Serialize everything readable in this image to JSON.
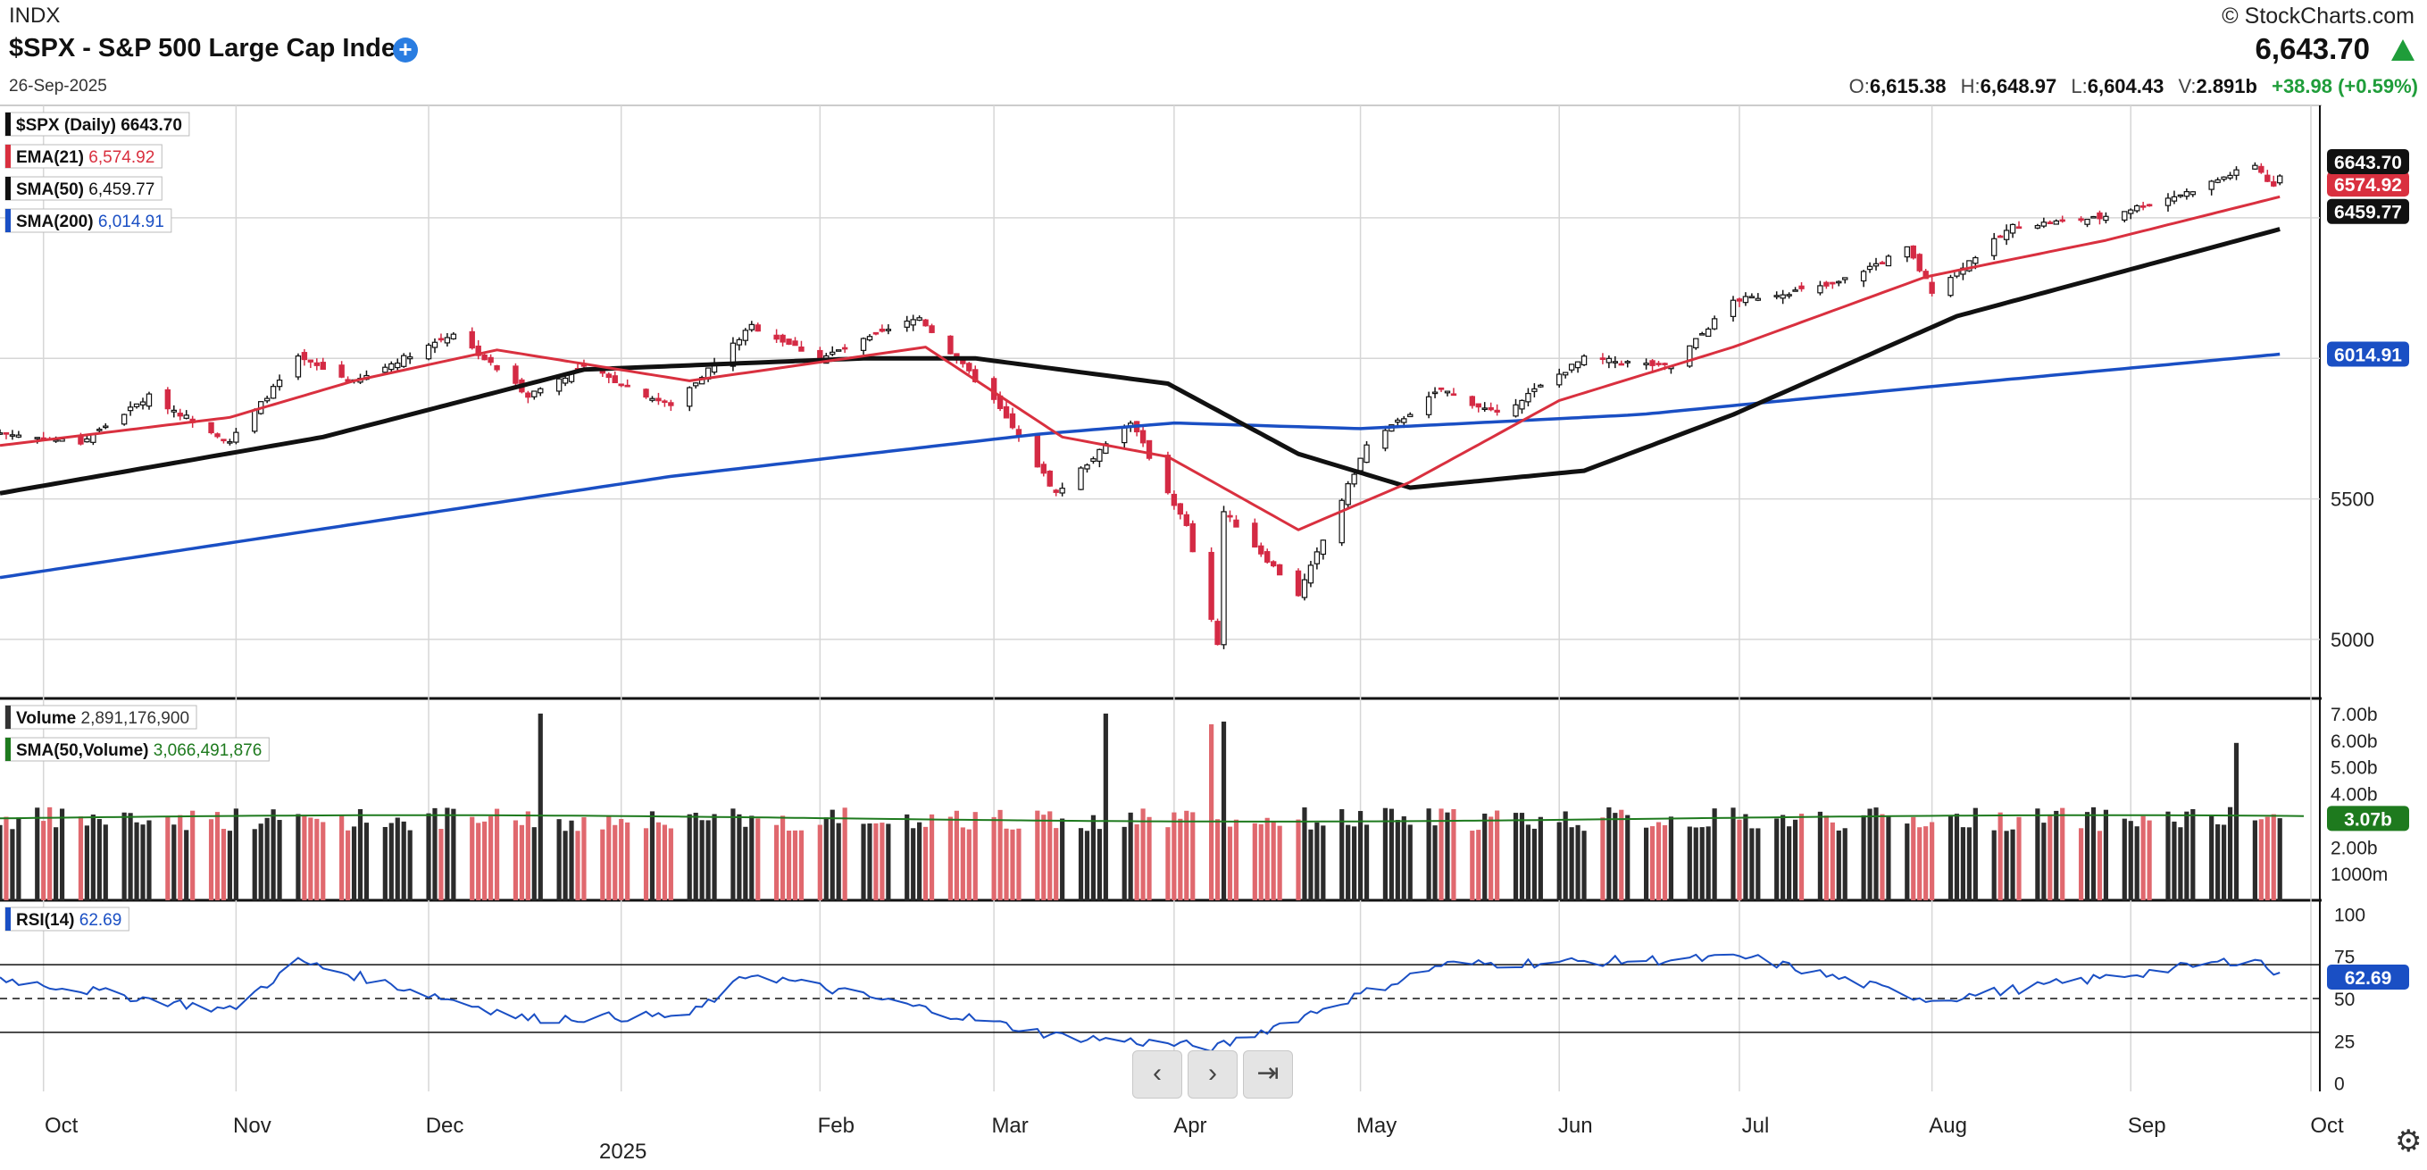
{
  "header": {
    "exchange": "INDX",
    "title": "$SPX - S&P 500 Large Cap Index",
    "date": "26-Sep-2025",
    "brand_symbol": "©",
    "brand_name": "StockCharts.com",
    "last": "6,643.70",
    "ohlc": {
      "o_label": "O:",
      "o": "6,615.38",
      "h_label": "H:",
      "h": "6,648.97",
      "l_label": "L:",
      "l": "6,604.43",
      "v_label": "V:",
      "v": "2.891b",
      "change": "+38.98 (+0.59%)"
    }
  },
  "colors": {
    "up": "#ffffff",
    "down": "#d42a44",
    "ema": "#d9303f",
    "sma50": "#111111",
    "sma200": "#1a4fc4",
    "vol_up": "#2b2b2b",
    "vol_down": "#e0686e",
    "vol_sma": "#1e7a1e",
    "rsi": "#1a4fc4",
    "accent_up": "#1f9d3a"
  },
  "legend": {
    "price": "$SPX (Daily) 6643.70",
    "ema_name": "EMA(21)",
    "ema_value": "6,574.92",
    "sma50_name": "SMA(50)",
    "sma50_value": "6,459.77",
    "sma200_name": "SMA(200)",
    "sma200_value": "6,014.91",
    "volume_name": "Volume",
    "volume_value": "2,891,176,900",
    "volsma_name": "SMA(50,Volume)",
    "volsma_value": "3,066,491,876",
    "rsi_name": "RSI(14)",
    "rsi_value": "62.69"
  },
  "price_tags": {
    "last": "6643.70",
    "ema": "6574.92",
    "sma50": "6459.77",
    "sma200": "6014.91",
    "volume": "3.07b",
    "rsi": "62.69"
  },
  "nav": {
    "prev": "‹",
    "next": "›",
    "end": "⇥"
  },
  "chart_data": {
    "type": "candlestick",
    "symbol": "$SPX",
    "x_ticks": [
      "Oct",
      "Nov",
      "Dec",
      "2025",
      "Feb",
      "Mar",
      "Apr",
      "May",
      "Jun",
      "Jul",
      "Aug",
      "Sep",
      "Oct"
    ],
    "x_range": [
      "2024-09-24",
      "2025-10-01"
    ],
    "price_axis": {
      "ylim": [
        4790,
        6900
      ],
      "ticks": [
        5000,
        5500
      ]
    },
    "volume_axis": {
      "ylim": [
        0,
        7.3
      ],
      "unit": "b",
      "tick_labels": [
        "7.00b",
        "6.00b",
        "5.00b",
        "4.00b",
        "3.00b",
        "2.00b",
        "1000m"
      ],
      "tick_values": [
        7,
        6,
        5,
        4,
        3,
        2,
        1
      ]
    },
    "rsi_axis": {
      "ylim": [
        -5,
        105
      ],
      "ticks": [
        100,
        75,
        50,
        25,
        0
      ],
      "levels": [
        70,
        50,
        30
      ]
    },
    "price_series": [
      {
        "date": "2024-09-24",
        "close": 5735
      },
      {
        "date": "2024-10-07",
        "close": 5700
      },
      {
        "date": "2024-10-18",
        "close": 5865
      },
      {
        "date": "2024-10-31",
        "close": 5705
      },
      {
        "date": "2024-11-11",
        "close": 6000
      },
      {
        "date": "2024-11-20",
        "close": 5915
      },
      {
        "date": "2024-12-06",
        "close": 6090
      },
      {
        "date": "2024-12-18",
        "close": 5870
      },
      {
        "date": "2024-12-27",
        "close": 5970
      },
      {
        "date": "2025-01-10",
        "close": 5830
      },
      {
        "date": "2025-01-23",
        "close": 6115
      },
      {
        "date": "2025-02-03",
        "close": 6000
      },
      {
        "date": "2025-02-19",
        "close": 6145
      },
      {
        "date": "2025-03-03",
        "close": 5850
      },
      {
        "date": "2025-03-13",
        "close": 5520
      },
      {
        "date": "2025-03-25",
        "close": 5775
      },
      {
        "date": "2025-04-03",
        "close": 5400
      },
      {
        "date": "2025-04-08",
        "close": 4980
      },
      {
        "date": "2025-04-09",
        "close": 5456
      },
      {
        "date": "2025-04-21",
        "close": 5160
      },
      {
        "date": "2025-05-02",
        "close": 5690
      },
      {
        "date": "2025-05-14",
        "close": 5890
      },
      {
        "date": "2025-05-23",
        "close": 5800
      },
      {
        "date": "2025-06-06",
        "close": 6000
      },
      {
        "date": "2025-06-20",
        "close": 5970
      },
      {
        "date": "2025-06-30",
        "close": 6205
      },
      {
        "date": "2025-07-16",
        "close": 6260
      },
      {
        "date": "2025-07-28",
        "close": 6390
      },
      {
        "date": "2025-08-01",
        "close": 6240
      },
      {
        "date": "2025-08-14",
        "close": 6470
      },
      {
        "date": "2025-08-28",
        "close": 6500
      },
      {
        "date": "2025-09-11",
        "close": 6590
      },
      {
        "date": "2025-09-22",
        "close": 6690
      },
      {
        "date": "2025-09-25",
        "close": 6605
      },
      {
        "date": "2025-09-26",
        "close": 6643.7
      }
    ],
    "ema21": [
      {
        "date": "2024-09-24",
        "value": 5690
      },
      {
        "date": "2024-10-31",
        "value": 5790
      },
      {
        "date": "2024-11-20",
        "value": 5920
      },
      {
        "date": "2024-12-13",
        "value": 6030
      },
      {
        "date": "2025-01-13",
        "value": 5920
      },
      {
        "date": "2025-02-20",
        "value": 6040
      },
      {
        "date": "2025-03-14",
        "value": 5720
      },
      {
        "date": "2025-03-31",
        "value": 5650
      },
      {
        "date": "2025-04-21",
        "value": 5390
      },
      {
        "date": "2025-05-09",
        "value": 5560
      },
      {
        "date": "2025-06-02",
        "value": 5850
      },
      {
        "date": "2025-06-30",
        "value": 6040
      },
      {
        "date": "2025-07-31",
        "value": 6290
      },
      {
        "date": "2025-08-29",
        "value": 6420
      },
      {
        "date": "2025-09-26",
        "value": 6574.92
      }
    ],
    "sma50": [
      {
        "date": "2024-09-24",
        "value": 5520
      },
      {
        "date": "2024-11-15",
        "value": 5720
      },
      {
        "date": "2024-12-27",
        "value": 5960
      },
      {
        "date": "2025-02-10",
        "value": 6000
      },
      {
        "date": "2025-02-28",
        "value": 6000
      },
      {
        "date": "2025-03-31",
        "value": 5910
      },
      {
        "date": "2025-04-21",
        "value": 5660
      },
      {
        "date": "2025-05-09",
        "value": 5540
      },
      {
        "date": "2025-06-06",
        "value": 5600
      },
      {
        "date": "2025-06-30",
        "value": 5800
      },
      {
        "date": "2025-08-05",
        "value": 6150
      },
      {
        "date": "2025-09-26",
        "value": 6459.77
      }
    ],
    "sma200": [
      {
        "date": "2024-09-24",
        "value": 5220
      },
      {
        "date": "2025-01-10",
        "value": 5580
      },
      {
        "date": "2025-03-10",
        "value": 5730
      },
      {
        "date": "2025-04-01",
        "value": 5770
      },
      {
        "date": "2025-05-01",
        "value": 5750
      },
      {
        "date": "2025-06-15",
        "value": 5800
      },
      {
        "date": "2025-08-01",
        "value": 5900
      },
      {
        "date": "2025-09-26",
        "value": 6014.91
      }
    ],
    "volume_spikes_b": [
      {
        "date": "2024-12-20",
        "value": 7.0
      },
      {
        "date": "2025-03-21",
        "value": 7.0
      },
      {
        "date": "2025-04-07",
        "value": 6.6
      },
      {
        "date": "2025-04-09",
        "value": 6.7
      },
      {
        "date": "2025-09-19",
        "value": 5.9
      }
    ],
    "volume_sma_b": 3.07,
    "rsi_series": [
      {
        "date": "2024-09-24",
        "value": 62
      },
      {
        "date": "2024-10-31",
        "value": 43
      },
      {
        "date": "2024-11-11",
        "value": 72
      },
      {
        "date": "2024-12-18",
        "value": 38
      },
      {
        "date": "2025-01-13",
        "value": 40
      },
      {
        "date": "2025-01-23",
        "value": 65
      },
      {
        "date": "2025-03-13",
        "value": 28
      },
      {
        "date": "2025-04-08",
        "value": 21
      },
      {
        "date": "2025-05-14",
        "value": 70
      },
      {
        "date": "2025-07-03",
        "value": 74
      },
      {
        "date": "2025-08-01",
        "value": 49
      },
      {
        "date": "2025-09-22",
        "value": 74
      },
      {
        "date": "2025-09-26",
        "value": 62.69
      }
    ]
  }
}
